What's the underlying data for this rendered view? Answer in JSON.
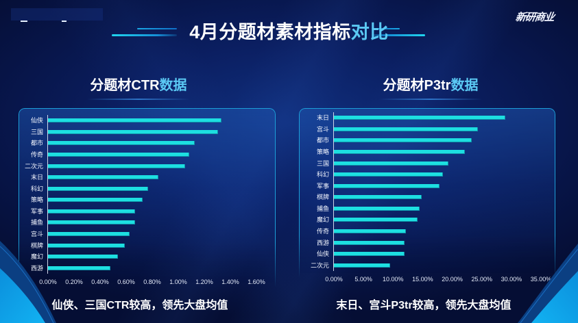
{
  "header": {
    "title_main": "4月分题材素材指标",
    "title_accent": "对比",
    "logo_text": "新研商业"
  },
  "left_panel": {
    "heading_main": "分题材CTR",
    "heading_accent": "数据",
    "caption": "仙侠、三国CTR较高，领先大盘均值"
  },
  "right_panel": {
    "heading_main": "分题材P3tr",
    "heading_accent": "数据",
    "caption": "末日、宫斗P3tr较高，领先大盘均值"
  },
  "colors": {
    "background": "#0b1f62",
    "bar": "#1ddfe1",
    "accent_text": "#5bc9f4",
    "panel_border": "#1c9fd8",
    "corner_bright": "#0ea5ec",
    "corner_dark": "#0b3f82"
  },
  "chart_data": [
    {
      "type": "bar",
      "orientation": "horizontal",
      "title": "分题材CTR数据",
      "xlabel": "",
      "ylabel": "",
      "unit": "%",
      "categories": [
        "仙侠",
        "三国",
        "都市",
        "传奇",
        "二次元",
        "末日",
        "科幻",
        "策略",
        "军事",
        "捕鱼",
        "宫斗",
        "棋牌",
        "魔幻",
        "西游"
      ],
      "values": [
        1.34,
        1.31,
        1.13,
        1.09,
        1.06,
        0.85,
        0.77,
        0.73,
        0.67,
        0.67,
        0.63,
        0.59,
        0.54,
        0.48
      ],
      "xlim": [
        0,
        1.6
      ],
      "xticks": [
        "0.00%",
        "0.20%",
        "0.40%",
        "0.60%",
        "0.80%",
        "1.00%",
        "1.20%",
        "1.40%",
        "1.60%"
      ],
      "grid": false,
      "legend": null
    },
    {
      "type": "bar",
      "orientation": "horizontal",
      "title": "分题材P3tr数据",
      "xlabel": "",
      "ylabel": "",
      "unit": "%",
      "categories": [
        "末日",
        "宫斗",
        "都市",
        "策略",
        "三国",
        "科幻",
        "军事",
        "棋牌",
        "捕鱼",
        "魔幻",
        "传奇",
        "西游",
        "仙侠",
        "二次元"
      ],
      "values": [
        29.1,
        24.5,
        23.4,
        22.3,
        19.5,
        18.5,
        17.9,
        14.9,
        14.6,
        14.2,
        12.2,
        12.0,
        12.0,
        9.5
      ],
      "xlim": [
        0,
        35
      ],
      "xticks": [
        "0.00%",
        "5.00%",
        "10.00%",
        "15.00%",
        "20.00%",
        "25.00%",
        "30.00%",
        "35.00%"
      ],
      "grid": false,
      "legend": null
    }
  ]
}
